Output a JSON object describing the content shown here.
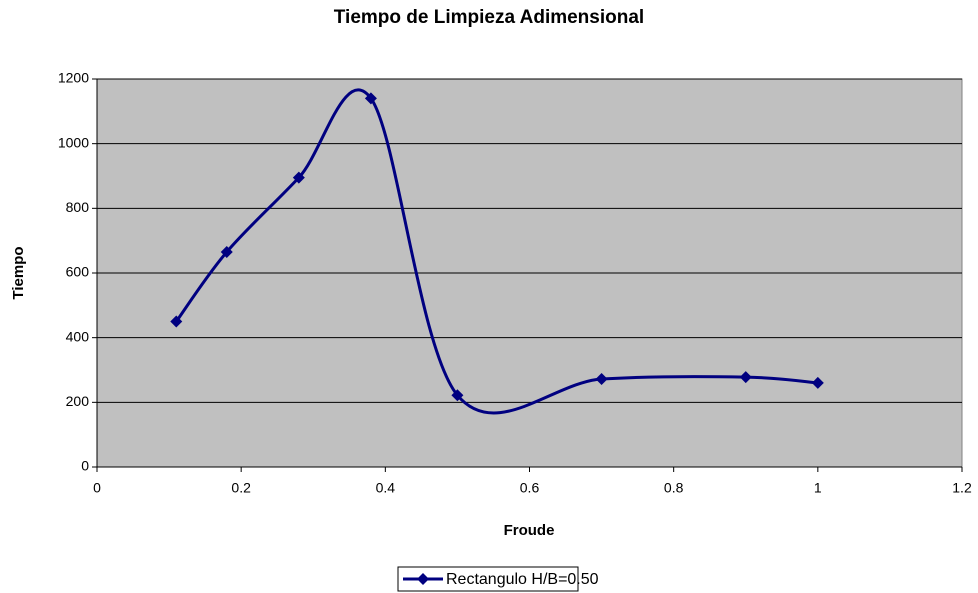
{
  "chart_data": {
    "type": "line",
    "smooth": true,
    "title": "Tiempo de Limpieza Adimensional",
    "xlabel": "Froude",
    "ylabel": "Tiempo",
    "x": [
      0.11,
      0.18,
      0.28,
      0.38,
      0.5,
      0.7,
      0.9,
      1.0
    ],
    "series": [
      {
        "name": "Rectangulo H/B=0.50",
        "color": "#000080",
        "values": [
          450,
          665,
          895,
          1140,
          222,
          272,
          278,
          260
        ]
      }
    ],
    "xlim": [
      0,
      1.2
    ],
    "xticks": [
      0,
      0.2,
      0.4,
      0.6,
      0.8,
      1,
      1.2
    ],
    "ylim": [
      0,
      1200
    ],
    "yticks": [
      0,
      200,
      400,
      600,
      800,
      1000,
      1200
    ],
    "grid": true,
    "legend": "bottom",
    "plot_background": "#c0c0c0"
  }
}
